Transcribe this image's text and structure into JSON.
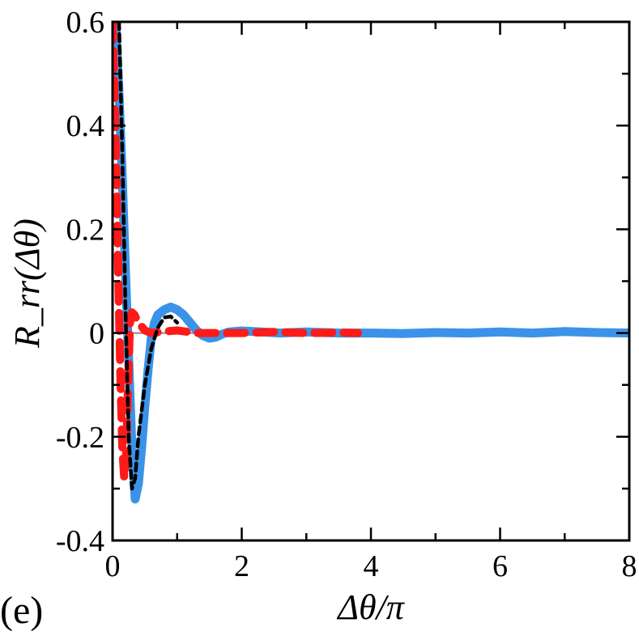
{
  "chart_data": {
    "type": "line",
    "panel_label": "(e)",
    "title": "",
    "xlabel": "Δθ/π",
    "ylabel": "R_rr(Δθ)",
    "xlim": [
      0,
      8
    ],
    "ylim": [
      -0.4,
      0.6
    ],
    "x_ticks": [
      "0",
      "2",
      "4",
      "6",
      "8"
    ],
    "y_ticks": [
      "-0.4",
      "-0.2",
      "0",
      "0.2",
      "0.4",
      "0.6"
    ],
    "grid": false,
    "legend": "none",
    "zero_line_color": "#888888",
    "series": [
      {
        "color": "#3a93e8",
        "style": "solid-thick",
        "points": [
          [
            0.05,
            0.6
          ],
          [
            0.1,
            0.46
          ],
          [
            0.15,
            0.3
          ],
          [
            0.2,
            0.12
          ],
          [
            0.25,
            -0.05
          ],
          [
            0.3,
            -0.22
          ],
          [
            0.35,
            -0.32
          ],
          [
            0.4,
            -0.29
          ],
          [
            0.45,
            -0.22
          ],
          [
            0.5,
            -0.14
          ],
          [
            0.55,
            -0.07
          ],
          [
            0.6,
            -0.01
          ],
          [
            0.65,
            0.02
          ],
          [
            0.7,
            0.035
          ],
          [
            0.8,
            0.045
          ],
          [
            0.9,
            0.05
          ],
          [
            1.0,
            0.045
          ],
          [
            1.1,
            0.035
          ],
          [
            1.2,
            0.02
          ],
          [
            1.3,
            0.005
          ],
          [
            1.4,
            -0.005
          ],
          [
            1.5,
            -0.01
          ],
          [
            1.6,
            -0.008
          ],
          [
            1.7,
            -0.002
          ],
          [
            1.8,
            0.002
          ],
          [
            2.0,
            0.004
          ],
          [
            2.3,
            0.002
          ],
          [
            2.6,
            0.0
          ],
          [
            3.0,
            0.002
          ],
          [
            3.5,
            0.0
          ],
          [
            4.0,
            0.0
          ],
          [
            4.5,
            -0.001
          ],
          [
            5.0,
            0.001
          ],
          [
            5.5,
            0.0
          ],
          [
            6.0,
            0.002
          ],
          [
            6.5,
            0.0
          ],
          [
            7.0,
            0.003
          ],
          [
            7.5,
            0.001
          ],
          [
            8.0,
            0.0
          ]
        ]
      },
      {
        "color": "#ff1a1a",
        "style": "dashed-thick",
        "points": [
          [
            0.0,
            0.6
          ],
          [
            0.03,
            0.45
          ],
          [
            0.06,
            0.3
          ],
          [
            0.09,
            0.1
          ],
          [
            0.12,
            -0.08
          ],
          [
            0.15,
            -0.22
          ],
          [
            0.18,
            -0.28
          ],
          [
            0.21,
            -0.24
          ],
          [
            0.24,
            -0.1
          ],
          [
            0.27,
            0.02
          ],
          [
            0.3,
            0.04
          ],
          [
            0.34,
            0.035
          ],
          [
            0.4,
            0.02
          ],
          [
            0.5,
            0.005
          ],
          [
            0.6,
            0.0
          ],
          [
            0.8,
            0.003
          ],
          [
            1.0,
            0.005
          ],
          [
            1.3,
            0.0
          ],
          [
            1.6,
            0.0
          ],
          [
            2.0,
            0.0
          ],
          [
            2.5,
            0.002
          ],
          [
            3.0,
            0.0
          ],
          [
            3.5,
            0.001
          ],
          [
            3.8,
            0.0
          ]
        ]
      },
      {
        "color": "#000000",
        "style": "dashed",
        "points": [
          [
            0.1,
            0.6
          ],
          [
            0.15,
            0.35
          ],
          [
            0.2,
            0.05
          ],
          [
            0.25,
            -0.2
          ],
          [
            0.3,
            -0.3
          ],
          [
            0.35,
            -0.28
          ],
          [
            0.4,
            -0.2
          ],
          [
            0.5,
            -0.1
          ],
          [
            0.6,
            -0.03
          ],
          [
            0.7,
            0.01
          ],
          [
            0.8,
            0.03
          ],
          [
            0.9,
            0.032
          ],
          [
            1.0,
            0.02
          ]
        ]
      }
    ]
  }
}
